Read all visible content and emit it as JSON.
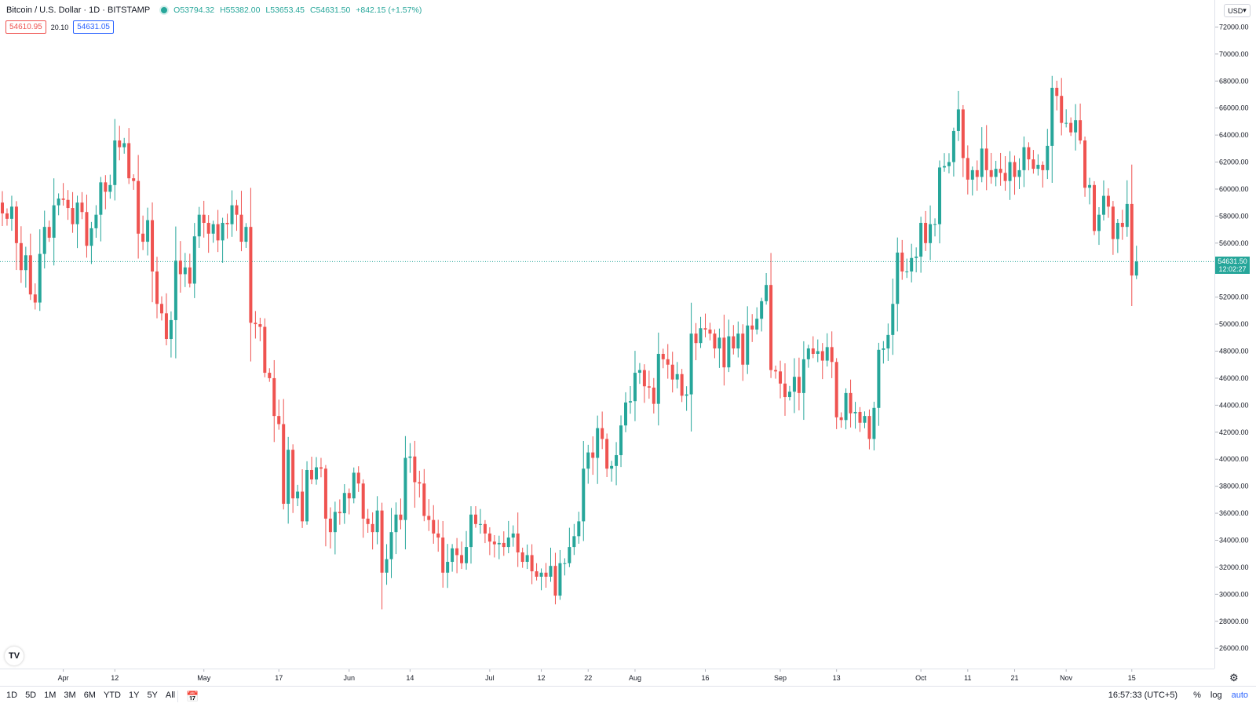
{
  "header": {
    "symbol": "Bitcoin / U.S. Dollar · 1D · BITSTAMP",
    "open": "O53794.32",
    "high": "H55382.00",
    "low": "L53653.45",
    "close": "C54631.50",
    "change": "+842.15 (+1.57%)",
    "bid": "54610.95",
    "spread": "20.10",
    "ask": "54631.05"
  },
  "currency_button": "USD",
  "last_price": {
    "value": "54631.50",
    "countdown": "12:02:27"
  },
  "bottom": {
    "ranges": [
      "1D",
      "5D",
      "1M",
      "3M",
      "6M",
      "YTD",
      "1Y",
      "5Y",
      "All"
    ],
    "time": "16:57:33 (UTC+5)",
    "percent": "%",
    "log": "log",
    "auto": "auto"
  },
  "colors": {
    "up": "#26a69a",
    "down": "#ef5350"
  },
  "chart_data": {
    "type": "candlestick",
    "interval": "1D",
    "ylim": [
      24500,
      74000
    ],
    "y_ticks": [
      "26000.00",
      "28000.00",
      "30000.00",
      "32000.00",
      "34000.00",
      "36000.00",
      "38000.00",
      "40000.00",
      "42000.00",
      "44000.00",
      "46000.00",
      "48000.00",
      "50000.00",
      "52000.00",
      "54000.00",
      "56000.00",
      "58000.00",
      "60000.00",
      "62000.00",
      "64000.00",
      "66000.00",
      "68000.00",
      "70000.00",
      "72000.00"
    ],
    "x_ticks": [
      {
        "label": "Apr",
        "index": 13
      },
      {
        "label": "12",
        "index": 24
      },
      {
        "label": "May",
        "index": 43
      },
      {
        "label": "17",
        "index": 59
      },
      {
        "label": "Jun",
        "index": 74
      },
      {
        "label": "14",
        "index": 87
      },
      {
        "label": "Jul",
        "index": 104
      },
      {
        "label": "12",
        "index": 115
      },
      {
        "label": "22",
        "index": 125
      },
      {
        "label": "Aug",
        "index": 135
      },
      {
        "label": "16",
        "index": 150
      },
      {
        "label": "Sep",
        "index": 166
      },
      {
        "label": "13",
        "index": 178
      },
      {
        "label": "Oct",
        "index": 196
      },
      {
        "label": "11",
        "index": 206
      },
      {
        "label": "21",
        "index": 216
      },
      {
        "label": "Nov",
        "index": 227
      },
      {
        "label": "15",
        "index": 241
      }
    ],
    "last_price_line": 54631.5,
    "closes": [
      58200,
      57800,
      58700,
      56000,
      54000,
      55100,
      52200,
      51600,
      55200,
      57200,
      56400,
      58800,
      59300,
      59200,
      58600,
      57400,
      59000,
      58300,
      55800,
      57100,
      58100,
      60500,
      59800,
      60300,
      63600,
      63100,
      63400,
      60800,
      60600,
      56700,
      56100,
      57700,
      53900,
      51500,
      50800,
      48900,
      50300,
      54700,
      53700,
      54200,
      53000,
      56500,
      58100,
      57500,
      56700,
      57400,
      56200,
      57500,
      57400,
      58800,
      58100,
      56100,
      57200,
      50100,
      50000,
      49800,
      46400,
      46000,
      43200,
      42600,
      36700,
      40700,
      37100,
      37600,
      35400,
      39200,
      38500,
      39400,
      39300,
      35600,
      34600,
      36100,
      36000,
      37500,
      37100,
      39000,
      38200,
      35600,
      35200,
      34600,
      36200,
      31600,
      32600,
      34600,
      35900,
      35500,
      40100,
      40200,
      38300,
      38200,
      35800,
      35500,
      34500,
      34200,
      31600,
      32400,
      33400,
      32900,
      32300,
      33500,
      35900,
      35200,
      35200,
      34500,
      33900,
      33700,
      33800,
      33500,
      34200,
      34500,
      33100,
      32400,
      32900,
      31700,
      31300,
      31600,
      31300,
      32100,
      29900,
      32300,
      32300,
      33500,
      34300,
      35400,
      39300,
      40500,
      40100,
      42300,
      41500,
      39300,
      39500,
      40300,
      42500,
      44200,
      44300,
      46400,
      46600,
      45400,
      45300,
      44100,
      47800,
      47400,
      47000,
      45900,
      46300,
      44700,
      44800,
      49300,
      48600,
      49700,
      49600,
      49300,
      48200,
      49000,
      46800,
      49100,
      48200,
      49300,
      47000,
      49900,
      49600,
      50400,
      51700,
      52900,
      46600,
      46500,
      45600,
      44600,
      45000,
      46100,
      44900,
      47400,
      48200,
      47800,
      48000,
      47300,
      48300,
      47200,
      43100,
      42900,
      44900,
      43400,
      43500,
      42700,
      43200,
      41500,
      43800,
      48100,
      48200,
      49200,
      51500,
      55300,
      53900,
      53900,
      54900,
      55000,
      57500,
      56000,
      57400,
      57400,
      61600,
      61700,
      62000,
      64300,
      65900,
      62300,
      60700,
      61400,
      60900,
      63000,
      61400,
      60900,
      61500,
      61200,
      60600,
      62000,
      60900,
      61400,
      63100,
      62200,
      61500,
      61800,
      61400,
      63200,
      67500,
      66900,
      64900,
      64900,
      64200,
      65100,
      63600,
      60100,
      60300,
      56900,
      58100,
      59500,
      58700,
      56300,
      57500,
      57200,
      58900,
      53600,
      54631.5
    ],
    "seed_open": 59000
  }
}
